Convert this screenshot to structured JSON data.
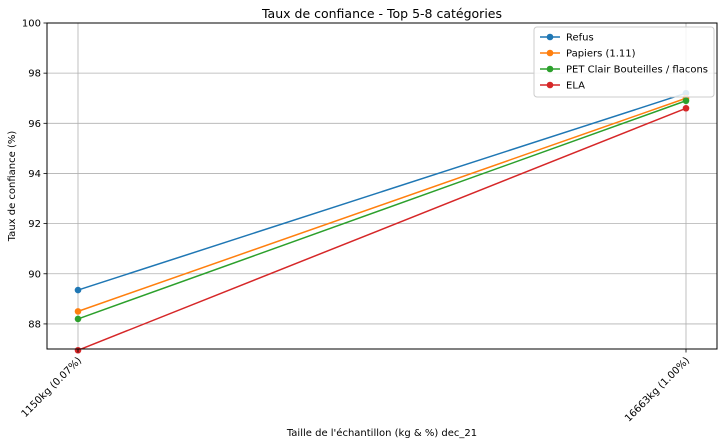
{
  "chart_data": {
    "type": "line",
    "title": "Taux de confiance - Top 5-8 catégories",
    "xlabel": "Taille de l'échantillon (kg & %) dec_21",
    "ylabel": "Taux de confiance (%)",
    "categories": [
      "1150kg (0.07%)",
      "16663kg (1.00%)"
    ],
    "ylim": [
      87,
      100
    ],
    "yticks": [
      88,
      90,
      92,
      94,
      96,
      98,
      100
    ],
    "grid": true,
    "legend_position": "top-right",
    "series": [
      {
        "name": "Refus",
        "color": "#1f77b4",
        "values": [
          89.35,
          97.2
        ]
      },
      {
        "name": "Papiers (1.11)",
        "color": "#ff7f0e",
        "values": [
          88.5,
          97.0
        ]
      },
      {
        "name": "PET Clair Bouteilles / flacons",
        "color": "#2ca02c",
        "values": [
          88.2,
          96.9
        ]
      },
      {
        "name": "ELA",
        "color": "#d62728",
        "values": [
          86.95,
          96.6
        ]
      }
    ]
  }
}
